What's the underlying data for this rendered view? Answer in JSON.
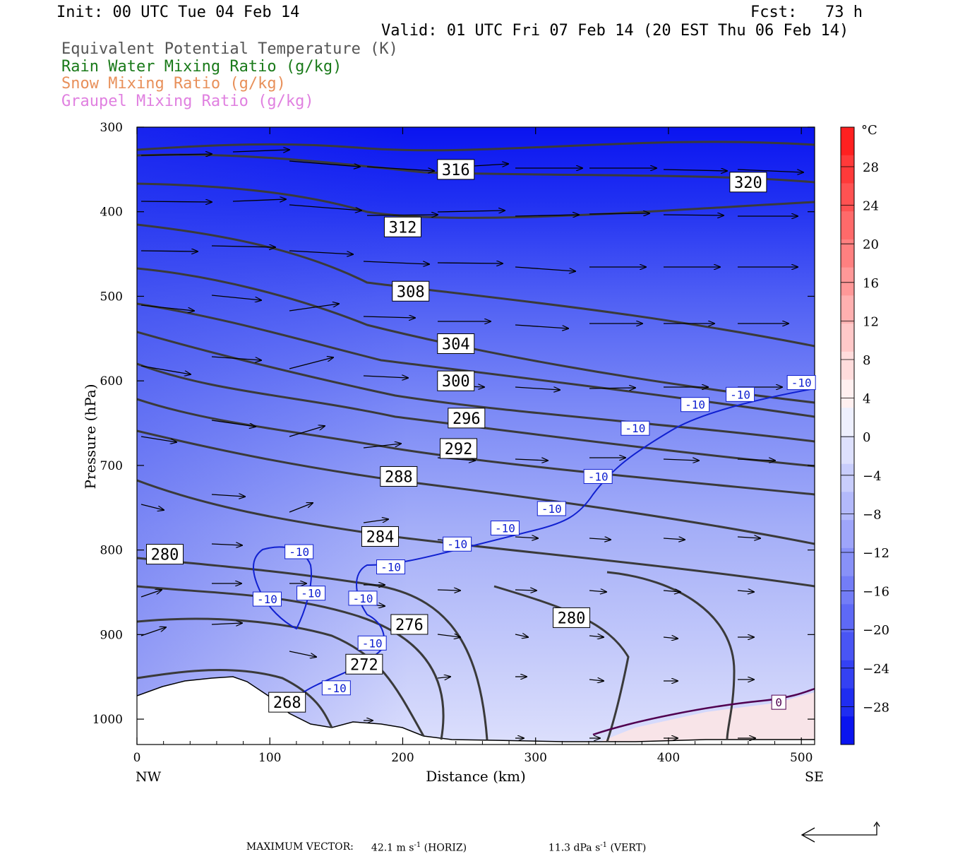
{
  "header": {
    "init": "Init: 00 UTC Tue 04 Feb 14",
    "fcst": "Fcst:   73 h",
    "valid": "Valid: 01 UTC Fri 07 Feb 14 (20 EST Thu 06 Feb 14)",
    "legend": [
      {
        "label": "Equivalent Potential Temperature (K)",
        "color": "#555555"
      },
      {
        "label": "Rain Water Mixing Ratio (g/kg)",
        "color": "#1a7a1a"
      },
      {
        "label": "Snow Mixing Ratio (g/kg)",
        "color": "#e8905a"
      },
      {
        "label": "Graupel Mixing Ratio (g/kg)",
        "color": "#e080e0"
      }
    ]
  },
  "footer": {
    "label": "MAXIMUM VECTOR:",
    "horiz": "42.1 m s",
    "horiz_suffix": "(HORIZ)",
    "vert": "11.3 dPa s",
    "vert_suffix": "(VERT)",
    "exponent": "-1"
  },
  "chart_data": {
    "type": "contour",
    "ylabel": "Pressure (hPa)",
    "xlabel": "Distance (km)",
    "x_end_labels": [
      "NW",
      "SE"
    ],
    "xlim": [
      0,
      510
    ],
    "ylim": [
      300,
      1030
    ],
    "y_inverted": true,
    "xticks": [
      0,
      100,
      200,
      300,
      400,
      500
    ],
    "yticks": [
      300,
      400,
      500,
      600,
      700,
      800,
      900,
      1000
    ],
    "colorbar": {
      "unit": "°C",
      "ticks": [
        28,
        24,
        20,
        16,
        12,
        8,
        4,
        0,
        -4,
        -8,
        -12,
        -16,
        -20,
        -24,
        -28
      ],
      "cold_color": "#0a14f0",
      "zero_color": "#ffffff",
      "warm_color": "#ff2020"
    },
    "theta_e_contour_labels": [
      {
        "value": "316",
        "x": 240,
        "p": 350
      },
      {
        "value": "320",
        "x": 460,
        "p": 365
      },
      {
        "value": "312",
        "x": 200,
        "p": 418
      },
      {
        "value": "308",
        "x": 206,
        "p": 494
      },
      {
        "value": "304",
        "x": 240,
        "p": 556
      },
      {
        "value": "300",
        "x": 240,
        "p": 600
      },
      {
        "value": "296",
        "x": 248,
        "p": 644
      },
      {
        "value": "292",
        "x": 242,
        "p": 680
      },
      {
        "value": "288",
        "x": 197,
        "p": 713
      },
      {
        "value": "284",
        "x": 183,
        "p": 784
      },
      {
        "value": "280",
        "x": 21,
        "p": 805
      },
      {
        "value": "276",
        "x": 205,
        "p": 888
      },
      {
        "value": "280",
        "x": 327,
        "p": 880
      },
      {
        "value": "272",
        "x": 171,
        "p": 935
      },
      {
        "value": "268",
        "x": 113,
        "p": 980
      }
    ],
    "temperature_contour_labels": [
      {
        "value": "-10",
        "x": 122,
        "p": 802
      },
      {
        "value": "-10",
        "x": 98,
        "p": 858
      },
      {
        "value": "-10",
        "x": 131,
        "p": 851
      },
      {
        "value": "-10",
        "x": 170,
        "p": 857
      },
      {
        "value": "-10",
        "x": 191,
        "p": 820
      },
      {
        "value": "-10",
        "x": 177,
        "p": 910
      },
      {
        "value": "-10",
        "x": 150,
        "p": 963
      },
      {
        "value": "-10",
        "x": 241,
        "p": 793
      },
      {
        "value": "-10",
        "x": 277,
        "p": 774
      },
      {
        "value": "-10",
        "x": 312,
        "p": 751
      },
      {
        "value": "-10",
        "x": 347,
        "p": 713
      },
      {
        "value": "-10",
        "x": 375,
        "p": 656
      },
      {
        "value": "-10",
        "x": 420,
        "p": 628
      },
      {
        "value": "-10",
        "x": 454,
        "p": 616
      },
      {
        "value": "-10",
        "x": 500,
        "p": 602
      },
      {
        "value": "0",
        "x": 483,
        "p": 980
      }
    ]
  }
}
